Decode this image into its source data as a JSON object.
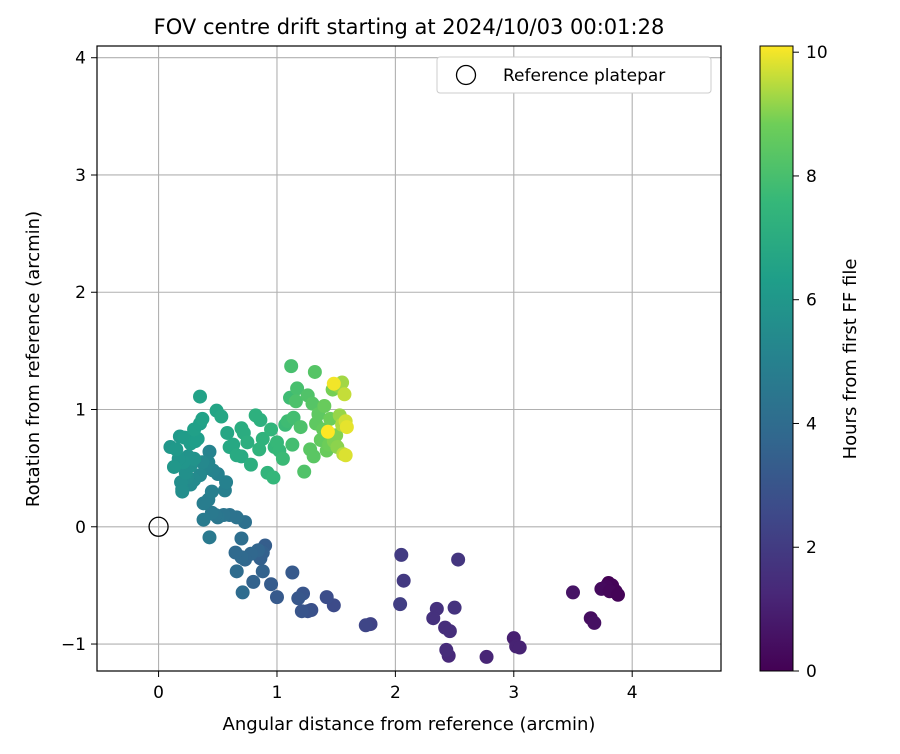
{
  "chart_data": {
    "type": "scatter",
    "title": "FOV centre drift starting at 2024/10/03 00:01:28",
    "xlabel": "Angular distance from reference (arcmin)",
    "ylabel": "Rotation from reference (arcmin)",
    "xlim": [
      -0.52,
      4.75
    ],
    "ylim": [
      -1.23,
      4.1
    ],
    "xticks": [
      0,
      1,
      2,
      3,
      4
    ],
    "yticks": [
      -1,
      0,
      1,
      2,
      3,
      4
    ],
    "grid": true,
    "legend": {
      "position": "top-right",
      "entries": [
        {
          "label": "Reference platepar",
          "marker": "open-circle",
          "color": "#000000"
        }
      ]
    },
    "reference_point": {
      "x": 0,
      "y": 0
    },
    "colorbar": {
      "label": "Hours from first FF file",
      "colormap": "viridis",
      "range": [
        0,
        10.1
      ],
      "ticks": [
        0,
        2,
        4,
        6,
        8,
        10
      ]
    },
    "series": [
      {
        "points": [
          {
            "x": 3.8,
            "y": -0.48,
            "c": 0.0
          },
          {
            "x": 3.83,
            "y": -0.5,
            "c": 0.1
          },
          {
            "x": 3.78,
            "y": -0.51,
            "c": 0.2
          },
          {
            "x": 3.86,
            "y": -0.55,
            "c": 0.1
          },
          {
            "x": 3.74,
            "y": -0.53,
            "c": 0.3
          },
          {
            "x": 3.81,
            "y": -0.55,
            "c": 0.2
          },
          {
            "x": 3.88,
            "y": -0.58,
            "c": 0.1
          },
          {
            "x": 3.65,
            "y": -0.78,
            "c": 0.4
          },
          {
            "x": 3.68,
            "y": -0.82,
            "c": 0.5
          },
          {
            "x": 3.5,
            "y": -0.56,
            "c": 0.6
          },
          {
            "x": 3.0,
            "y": -0.95,
            "c": 1.0
          },
          {
            "x": 3.02,
            "y": -1.02,
            "c": 1.1
          },
          {
            "x": 3.05,
            "y": -1.03,
            "c": 1.1
          },
          {
            "x": 2.77,
            "y": -1.11,
            "c": 1.2
          },
          {
            "x": 2.45,
            "y": -1.1,
            "c": 1.3
          },
          {
            "x": 2.43,
            "y": -1.05,
            "c": 1.4
          },
          {
            "x": 2.42,
            "y": -0.86,
            "c": 1.5
          },
          {
            "x": 2.46,
            "y": -0.89,
            "c": 1.5
          },
          {
            "x": 2.35,
            "y": -0.7,
            "c": 1.6
          },
          {
            "x": 2.32,
            "y": -0.78,
            "c": 1.6
          },
          {
            "x": 2.5,
            "y": -0.69,
            "c": 1.7
          },
          {
            "x": 2.53,
            "y": -0.28,
            "c": 1.8
          },
          {
            "x": 2.07,
            "y": -0.46,
            "c": 1.9
          },
          {
            "x": 2.05,
            "y": -0.24,
            "c": 2.0
          },
          {
            "x": 2.04,
            "y": -0.66,
            "c": 2.1
          },
          {
            "x": 1.79,
            "y": -0.83,
            "c": 2.3
          },
          {
            "x": 1.75,
            "y": -0.84,
            "c": 2.4
          },
          {
            "x": 1.48,
            "y": -0.67,
            "c": 2.6
          },
          {
            "x": 1.42,
            "y": -0.6,
            "c": 2.7
          },
          {
            "x": 1.29,
            "y": -0.71,
            "c": 2.8
          },
          {
            "x": 1.26,
            "y": -0.72,
            "c": 2.9
          },
          {
            "x": 1.21,
            "y": -0.72,
            "c": 3.0
          },
          {
            "x": 1.22,
            "y": -0.57,
            "c": 3.0
          },
          {
            "x": 1.18,
            "y": -0.61,
            "c": 3.1
          },
          {
            "x": 1.13,
            "y": -0.39,
            "c": 3.2
          },
          {
            "x": 1.0,
            "y": -0.6,
            "c": 3.2
          },
          {
            "x": 0.95,
            "y": -0.49,
            "c": 3.3
          },
          {
            "x": 0.9,
            "y": -0.16,
            "c": 3.4
          },
          {
            "x": 0.88,
            "y": -0.22,
            "c": 3.5
          },
          {
            "x": 0.86,
            "y": -0.27,
            "c": 3.5
          },
          {
            "x": 0.88,
            "y": -0.38,
            "c": 3.6
          },
          {
            "x": 0.8,
            "y": -0.47,
            "c": 3.6
          },
          {
            "x": 0.84,
            "y": -0.2,
            "c": 3.7
          },
          {
            "x": 0.78,
            "y": -0.23,
            "c": 3.8
          },
          {
            "x": 0.73,
            "y": -0.28,
            "c": 3.8
          },
          {
            "x": 0.7,
            "y": -0.26,
            "c": 3.9
          },
          {
            "x": 0.65,
            "y": -0.22,
            "c": 3.9
          },
          {
            "x": 0.66,
            "y": -0.38,
            "c": 4.0
          },
          {
            "x": 0.71,
            "y": -0.56,
            "c": 4.0
          },
          {
            "x": 0.7,
            "y": -0.1,
            "c": 4.1
          },
          {
            "x": 0.73,
            "y": 0.04,
            "c": 4.2
          },
          {
            "x": 0.66,
            "y": 0.08,
            "c": 4.3
          },
          {
            "x": 0.6,
            "y": 0.1,
            "c": 4.3
          },
          {
            "x": 0.55,
            "y": 0.1,
            "c": 4.4
          },
          {
            "x": 0.5,
            "y": 0.08,
            "c": 4.5
          },
          {
            "x": 0.48,
            "y": 0.1,
            "c": 4.5
          },
          {
            "x": 0.45,
            "y": 0.12,
            "c": 4.6
          },
          {
            "x": 0.43,
            "y": -0.09,
            "c": 4.6
          },
          {
            "x": 0.38,
            "y": 0.06,
            "c": 4.7
          },
          {
            "x": 0.38,
            "y": 0.2,
            "c": 4.8
          },
          {
            "x": 0.42,
            "y": 0.23,
            "c": 4.8
          },
          {
            "x": 0.45,
            "y": 0.3,
            "c": 4.9
          },
          {
            "x": 0.56,
            "y": 0.31,
            "c": 4.9
          },
          {
            "x": 0.57,
            "y": 0.38,
            "c": 5.0
          },
          {
            "x": 0.5,
            "y": 0.45,
            "c": 5.0
          },
          {
            "x": 0.46,
            "y": 0.48,
            "c": 5.1
          },
          {
            "x": 0.43,
            "y": 0.64,
            "c": 5.1
          },
          {
            "x": 0.42,
            "y": 0.55,
            "c": 5.2
          },
          {
            "x": 0.4,
            "y": 0.5,
            "c": 5.2
          },
          {
            "x": 0.37,
            "y": 0.55,
            "c": 5.3
          },
          {
            "x": 0.35,
            "y": 0.44,
            "c": 5.3
          },
          {
            "x": 0.3,
            "y": 0.4,
            "c": 5.4
          },
          {
            "x": 0.27,
            "y": 0.36,
            "c": 5.4
          },
          {
            "x": 0.24,
            "y": 0.42,
            "c": 5.5
          },
          {
            "x": 0.2,
            "y": 0.32,
            "c": 5.5
          },
          {
            "x": 0.19,
            "y": 0.38,
            "c": 5.6
          },
          {
            "x": 0.2,
            "y": 0.3,
            "c": 5.6
          },
          {
            "x": 0.23,
            "y": 0.46,
            "c": 5.7
          },
          {
            "x": 0.27,
            "y": 0.52,
            "c": 5.7
          },
          {
            "x": 0.3,
            "y": 0.58,
            "c": 5.8
          },
          {
            "x": 0.25,
            "y": 0.6,
            "c": 5.8
          },
          {
            "x": 0.21,
            "y": 0.55,
            "c": 5.9
          },
          {
            "x": 0.17,
            "y": 0.58,
            "c": 5.9
          },
          {
            "x": 0.13,
            "y": 0.51,
            "c": 6.0
          },
          {
            "x": 0.1,
            "y": 0.68,
            "c": 6.0
          },
          {
            "x": 0.15,
            "y": 0.66,
            "c": 6.1
          },
          {
            "x": 0.18,
            "y": 0.77,
            "c": 6.1
          },
          {
            "x": 0.22,
            "y": 0.76,
            "c": 6.2
          },
          {
            "x": 0.27,
            "y": 0.71,
            "c": 6.2
          },
          {
            "x": 0.31,
            "y": 0.73,
            "c": 6.3
          },
          {
            "x": 0.33,
            "y": 0.75,
            "c": 6.3
          },
          {
            "x": 0.3,
            "y": 0.83,
            "c": 6.4
          },
          {
            "x": 0.35,
            "y": 0.88,
            "c": 6.4
          },
          {
            "x": 0.37,
            "y": 0.92,
            "c": 6.5
          },
          {
            "x": 0.35,
            "y": 1.11,
            "c": 6.5
          },
          {
            "x": 0.49,
            "y": 0.99,
            "c": 6.6
          },
          {
            "x": 0.53,
            "y": 0.94,
            "c": 6.7
          },
          {
            "x": 0.58,
            "y": 0.8,
            "c": 6.7
          },
          {
            "x": 0.6,
            "y": 0.68,
            "c": 6.8
          },
          {
            "x": 0.63,
            "y": 0.7,
            "c": 6.8
          },
          {
            "x": 0.66,
            "y": 0.61,
            "c": 6.9
          },
          {
            "x": 0.7,
            "y": 0.6,
            "c": 6.9
          },
          {
            "x": 0.7,
            "y": 0.84,
            "c": 7.0
          },
          {
            "x": 0.72,
            "y": 0.8,
            "c": 7.0
          },
          {
            "x": 0.75,
            "y": 0.72,
            "c": 7.1
          },
          {
            "x": 0.78,
            "y": 0.53,
            "c": 7.1
          },
          {
            "x": 0.82,
            "y": 0.95,
            "c": 7.2
          },
          {
            "x": 0.86,
            "y": 0.91,
            "c": 7.2
          },
          {
            "x": 0.85,
            "y": 0.66,
            "c": 7.3
          },
          {
            "x": 0.88,
            "y": 0.75,
            "c": 7.3
          },
          {
            "x": 0.92,
            "y": 0.46,
            "c": 7.4
          },
          {
            "x": 0.95,
            "y": 0.83,
            "c": 7.4
          },
          {
            "x": 0.97,
            "y": 0.42,
            "c": 7.5
          },
          {
            "x": 0.98,
            "y": 0.68,
            "c": 7.5
          },
          {
            "x": 1.0,
            "y": 0.72,
            "c": 7.6
          },
          {
            "x": 1.02,
            "y": 0.65,
            "c": 7.6
          },
          {
            "x": 1.05,
            "y": 0.58,
            "c": 7.7
          },
          {
            "x": 1.07,
            "y": 0.87,
            "c": 7.7
          },
          {
            "x": 1.09,
            "y": 0.9,
            "c": 7.8
          },
          {
            "x": 1.11,
            "y": 1.1,
            "c": 7.8
          },
          {
            "x": 1.14,
            "y": 0.93,
            "c": 7.9
          },
          {
            "x": 1.13,
            "y": 0.7,
            "c": 7.9
          },
          {
            "x": 1.12,
            "y": 1.37,
            "c": 8.0
          },
          {
            "x": 1.17,
            "y": 1.18,
            "c": 8.0
          },
          {
            "x": 1.16,
            "y": 1.07,
            "c": 8.1
          },
          {
            "x": 1.2,
            "y": 0.85,
            "c": 8.1
          },
          {
            "x": 1.23,
            "y": 0.47,
            "c": 8.2
          },
          {
            "x": 1.26,
            "y": 1.12,
            "c": 8.2
          },
          {
            "x": 1.3,
            "y": 1.05,
            "c": 8.3
          },
          {
            "x": 1.32,
            "y": 1.32,
            "c": 8.3
          },
          {
            "x": 1.28,
            "y": 0.66,
            "c": 8.4
          },
          {
            "x": 1.31,
            "y": 0.6,
            "c": 8.4
          },
          {
            "x": 1.33,
            "y": 0.88,
            "c": 8.5
          },
          {
            "x": 1.35,
            "y": 0.96,
            "c": 8.5
          },
          {
            "x": 1.37,
            "y": 0.74,
            "c": 8.6
          },
          {
            "x": 1.39,
            "y": 0.83,
            "c": 8.6
          },
          {
            "x": 1.4,
            "y": 1.03,
            "c": 8.7
          },
          {
            "x": 1.42,
            "y": 0.65,
            "c": 8.7
          },
          {
            "x": 1.44,
            "y": 0.7,
            "c": 8.8
          },
          {
            "x": 1.45,
            "y": 0.92,
            "c": 8.8
          },
          {
            "x": 1.47,
            "y": 1.17,
            "c": 8.9
          },
          {
            "x": 1.48,
            "y": 0.73,
            "c": 9.0
          },
          {
            "x": 1.5,
            "y": 0.78,
            "c": 9.0
          },
          {
            "x": 1.51,
            "y": 0.68,
            "c": 9.1
          },
          {
            "x": 1.52,
            "y": 1.2,
            "c": 9.2
          },
          {
            "x": 1.53,
            "y": 0.95,
            "c": 9.2
          },
          {
            "x": 1.55,
            "y": 1.23,
            "c": 9.3
          },
          {
            "x": 1.55,
            "y": 0.87,
            "c": 9.4
          },
          {
            "x": 1.56,
            "y": 0.62,
            "c": 9.5
          },
          {
            "x": 1.57,
            "y": 1.13,
            "c": 9.6
          },
          {
            "x": 1.58,
            "y": 0.9,
            "c": 9.7
          },
          {
            "x": 1.58,
            "y": 0.61,
            "c": 9.8
          },
          {
            "x": 1.59,
            "y": 0.85,
            "c": 9.9
          },
          {
            "x": 1.48,
            "y": 1.22,
            "c": 10.0
          },
          {
            "x": 1.43,
            "y": 0.81,
            "c": 10.1
          }
        ]
      }
    ]
  }
}
